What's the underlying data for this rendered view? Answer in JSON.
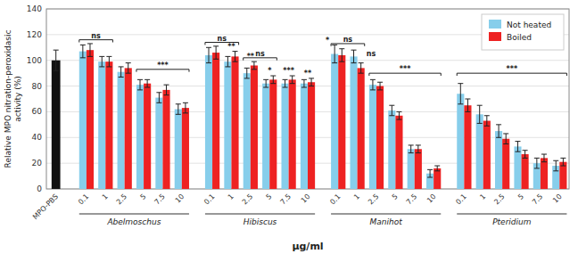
{
  "chart_data": {
    "type": "bar",
    "ylabel": "Relative MPO nitration-peroxidasic\nactivity (%)",
    "xlabel": "μg/ml",
    "ylim": [
      0,
      140
    ],
    "yticks": [
      0,
      20,
      40,
      60,
      80,
      100,
      120,
      140
    ],
    "grid": true,
    "legend": "upper right",
    "categories": [
      "MPO-PBS",
      "0.1",
      "1",
      "2.5",
      "5",
      "7.5",
      "10",
      "0.1",
      "1",
      "2.5",
      "5",
      "7.5",
      "10",
      "0.1",
      "1",
      "2.5",
      "5",
      "7.5",
      "10",
      "0.1",
      "1",
      "2.5",
      "5",
      "7.5",
      "10"
    ],
    "groups": [
      {
        "name": "Abelmoschus",
        "count": 6
      },
      {
        "name": "Hibiscus",
        "count": 6
      },
      {
        "name": "Manihot",
        "count": 6
      },
      {
        "name": "Pteridium",
        "count": 6
      }
    ],
    "series": [
      {
        "name": "Not heated",
        "color": "#87CEEB",
        "colors": [
          "#111111",
          "#87CEEB",
          "#87CEEB",
          "#87CEEB",
          "#87CEEB",
          "#87CEEB",
          "#87CEEB",
          "#87CEEB",
          "#87CEEB",
          "#87CEEB",
          "#87CEEB",
          "#87CEEB",
          "#87CEEB",
          "#87CEEB",
          "#87CEEB",
          "#87CEEB",
          "#87CEEB",
          "#87CEEB",
          "#87CEEB",
          "#87CEEB",
          "#87CEEB",
          "#87CEEB",
          "#87CEEB",
          "#87CEEB",
          "#87CEEB"
        ],
        "values": [
          100,
          107,
          99,
          91,
          81,
          71,
          62,
          104,
          99,
          90,
          82,
          82,
          82,
          105,
          103,
          81,
          61,
          31,
          12,
          74,
          58,
          45,
          33,
          20,
          18
        ],
        "errors": [
          8,
          5,
          4,
          4,
          4,
          4,
          4,
          6,
          4,
          4,
          3,
          3,
          3,
          7,
          5,
          4,
          4,
          3,
          3,
          8,
          7,
          5,
          4,
          4,
          4
        ]
      },
      {
        "name": "Boiled",
        "color": "#EE2222",
        "values": [
          null,
          108,
          99,
          94,
          82,
          77,
          63,
          106,
          103,
          96,
          85,
          85,
          83,
          104,
          94,
          80,
          57,
          31,
          16,
          65,
          53,
          39,
          27,
          24,
          21
        ],
        "errors": [
          null,
          5,
          4,
          4,
          3,
          4,
          4,
          5,
          4,
          3,
          3,
          3,
          3,
          5,
          4,
          3,
          3,
          3,
          2,
          5,
          4,
          4,
          3,
          3,
          3
        ]
      }
    ],
    "annotations": [
      {
        "kind": "bracket",
        "text": "ns",
        "from": 1,
        "to": 2,
        "y": 114
      },
      {
        "kind": "bracket",
        "text": "***",
        "from": 4,
        "to": 6,
        "y": 91
      },
      {
        "kind": "bracket",
        "text": "ns",
        "from": 7,
        "to": 8,
        "y": 112
      },
      {
        "kind": "bracket",
        "text": "ns",
        "from": 9,
        "to": 10,
        "y": 100
      },
      {
        "kind": "label",
        "text": "**",
        "category": 8,
        "y": 109
      },
      {
        "kind": "label",
        "text": "**",
        "category": 9,
        "y": 101
      },
      {
        "kind": "label",
        "text": "*",
        "category": 10,
        "y": 90
      },
      {
        "kind": "label",
        "text": "***",
        "category": 11,
        "y": 90
      },
      {
        "kind": "label",
        "text": "**",
        "category": 12,
        "y": 88
      },
      {
        "kind": "bracket",
        "text": "ns",
        "from": 13,
        "to": 14,
        "y": 111
      },
      {
        "kind": "label",
        "text": "*",
        "category": 13,
        "y": 114,
        "align": "right"
      },
      {
        "kind": "label",
        "text": "ns",
        "category": 14,
        "y": 103,
        "align": "left"
      },
      {
        "kind": "bracket",
        "text": "***",
        "from": 15,
        "to": 18,
        "y": 88
      },
      {
        "kind": "bracket",
        "text": "***",
        "from": 19,
        "to": 24,
        "y": 88
      }
    ]
  }
}
